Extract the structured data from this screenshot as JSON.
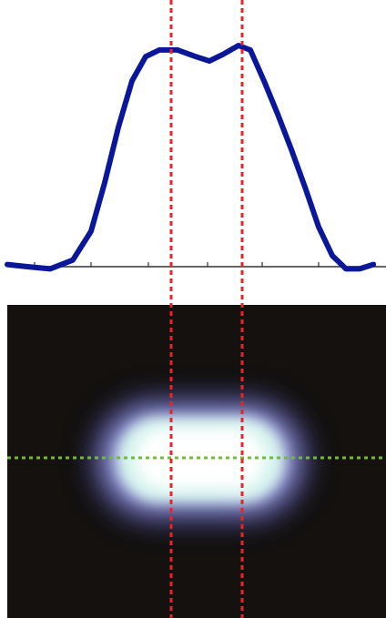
{
  "chart_data": {
    "type": "line",
    "color": "#0b1799",
    "x": [
      8,
      30,
      55,
      80,
      100,
      115,
      130,
      145,
      160,
      175,
      195,
      215,
      230,
      245,
      262,
      275,
      290,
      305,
      320,
      335,
      350,
      365,
      380,
      395,
      410
    ],
    "values": [
      0.01,
      0,
      -0.01,
      0.03,
      0.16,
      0.38,
      0.63,
      0.84,
      0.95,
      0.98,
      0.98,
      0.95,
      0.93,
      0.96,
      1.0,
      0.98,
      0.84,
      0.69,
      0.53,
      0.36,
      0.18,
      0.05,
      -0.01,
      -0.01,
      0.01
    ],
    "xlim": [
      0,
      424
    ],
    "ylim": [
      0,
      1
    ],
    "xticks": [
      38,
      100,
      163,
      228,
      288,
      350,
      412
    ],
    "vlines": [
      188,
      266
    ],
    "vline_color": "#e3262a"
  }
}
